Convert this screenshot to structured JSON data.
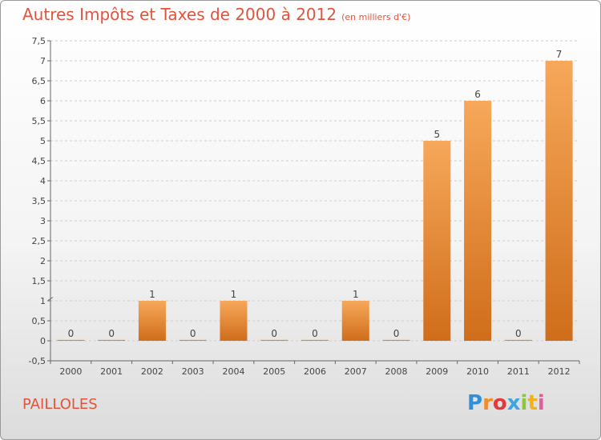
{
  "title": "Autres Impôts et Taxes de 2000 à 2012",
  "unit": "(en milliers d'€)",
  "town": "PAILLOLES",
  "logo": {
    "letters": [
      "P",
      "r",
      "o",
      "x",
      "i",
      "t",
      "i"
    ],
    "colors": [
      "#2f8fd8",
      "#f28c28",
      "#e23a3a",
      "#3da5e0",
      "#8cc63f",
      "#f2b21b",
      "#e85a9b"
    ]
  },
  "colors": {
    "bar_light": "#f7a85a",
    "bar_dark": "#cf6d1a",
    "title": "#e0543c",
    "grid": "#cccccc"
  },
  "chart_data": {
    "type": "bar",
    "title": "Autres Impôts et Taxes de 2000 à 2012",
    "subtitle": "(en milliers d'€)",
    "categories": [
      "2000",
      "2001",
      "2002",
      "2003",
      "2004",
      "2005",
      "2006",
      "2007",
      "2008",
      "2009",
      "2010",
      "2011",
      "2012"
    ],
    "values": [
      0,
      0,
      1,
      0,
      1,
      0,
      0,
      1,
      0,
      5,
      6,
      0,
      7
    ],
    "data_labels": [
      "0",
      "0",
      "1",
      "0",
      "1",
      "0",
      "0",
      "1",
      "0",
      "5",
      "6",
      "0",
      "7"
    ],
    "ylim": [
      -0.5,
      7.5
    ],
    "yticks": [
      -0.5,
      0,
      0.5,
      1,
      1.5,
      2,
      2.5,
      3,
      3.5,
      4,
      4.5,
      5,
      5.5,
      6,
      6.5,
      7,
      7.5
    ],
    "ytick_labels": [
      "-0,5",
      "0",
      "0,5",
      "1",
      "1,5",
      "2",
      "2,5",
      "3",
      "3,5",
      "4",
      "4,5",
      "5",
      "5,5",
      "6",
      "6,5",
      "7",
      "7,5"
    ],
    "grid": "horizontal dashed"
  }
}
